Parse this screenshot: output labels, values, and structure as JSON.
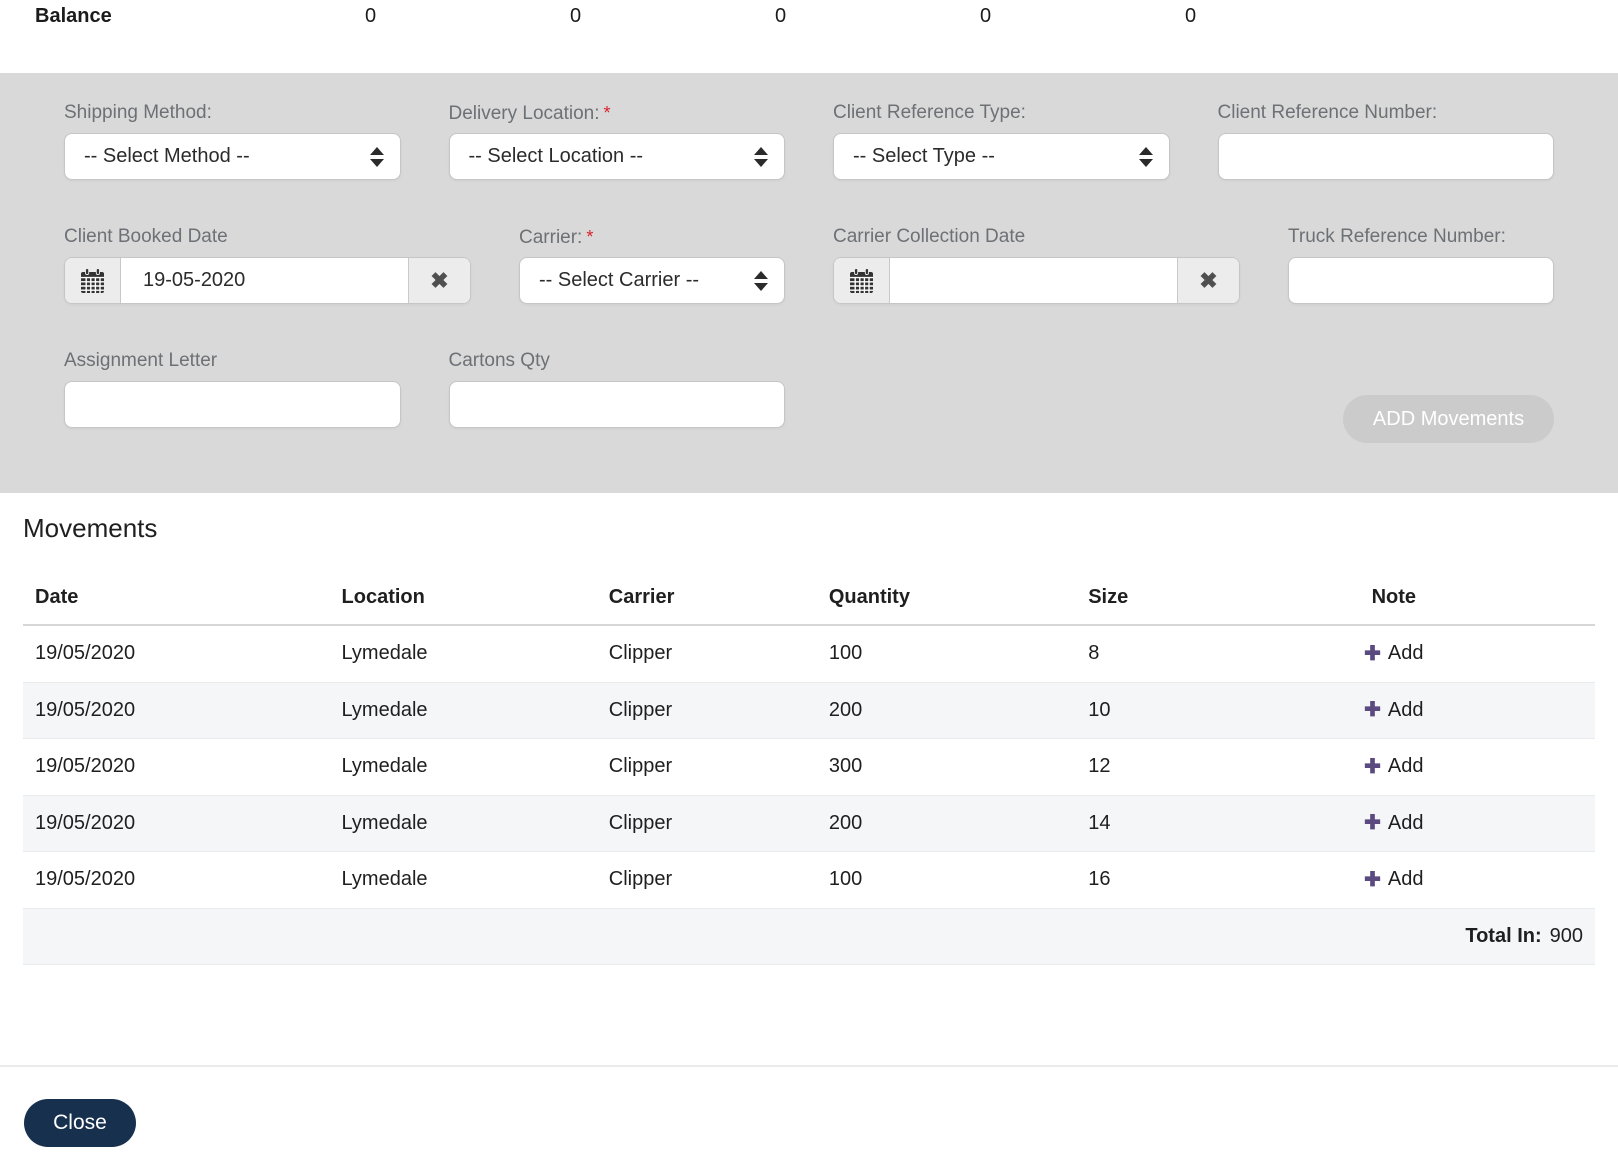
{
  "colors": {
    "panel_bg": "#d9d9d9",
    "add_movements_bg": "#cbcbcb",
    "close_bg": "#17304d",
    "plus_accent": "#5b4a7f",
    "required_red": "#d9232e",
    "row_stripe": "#f5f6f8"
  },
  "balance": {
    "label": "Balance",
    "values": [
      "0",
      "0",
      "0",
      "0",
      "0"
    ]
  },
  "form": {
    "required_marker": "*",
    "shipping_method": {
      "label": "Shipping Method:",
      "selected": "-- Select Method --"
    },
    "delivery_location": {
      "label": "Delivery Location:",
      "selected": "-- Select Location --"
    },
    "client_reference_type": {
      "label": "Client Reference Type:",
      "selected": "-- Select Type --"
    },
    "client_reference_number": {
      "label": "Client Reference Number:",
      "value": ""
    },
    "client_booked_date": {
      "label": "Client Booked Date",
      "value": "19-05-2020"
    },
    "carrier": {
      "label": "Carrier:",
      "selected": "-- Select Carrier --"
    },
    "carrier_collection_date": {
      "label": "Carrier Collection Date",
      "value": ""
    },
    "truck_reference_number": {
      "label": "Truck Reference Number:",
      "value": ""
    },
    "assignment_letter": {
      "label": "Assignment Letter",
      "value": ""
    },
    "cartons_qty": {
      "label": "Cartons Qty",
      "value": ""
    },
    "add_movements_button": "ADD Movements"
  },
  "movements": {
    "title": "Movements",
    "columns": [
      "Date",
      "Location",
      "Carrier",
      "Quantity",
      "Size",
      "Note"
    ],
    "add_label": "Add",
    "plus_glyph": "✚",
    "rows": [
      {
        "date": "19/05/2020",
        "location": "Lymedale",
        "carrier": "Clipper",
        "quantity": "100",
        "size": "8"
      },
      {
        "date": "19/05/2020",
        "location": "Lymedale",
        "carrier": "Clipper",
        "quantity": "200",
        "size": "10"
      },
      {
        "date": "19/05/2020",
        "location": "Lymedale",
        "carrier": "Clipper",
        "quantity": "300",
        "size": "12"
      },
      {
        "date": "19/05/2020",
        "location": "Lymedale",
        "carrier": "Clipper",
        "quantity": "200",
        "size": "14"
      },
      {
        "date": "19/05/2020",
        "location": "Lymedale",
        "carrier": "Clipper",
        "quantity": "100",
        "size": "16"
      }
    ],
    "total_label": "Total In:",
    "total_value": "900"
  },
  "footer": {
    "close_button": "Close"
  }
}
